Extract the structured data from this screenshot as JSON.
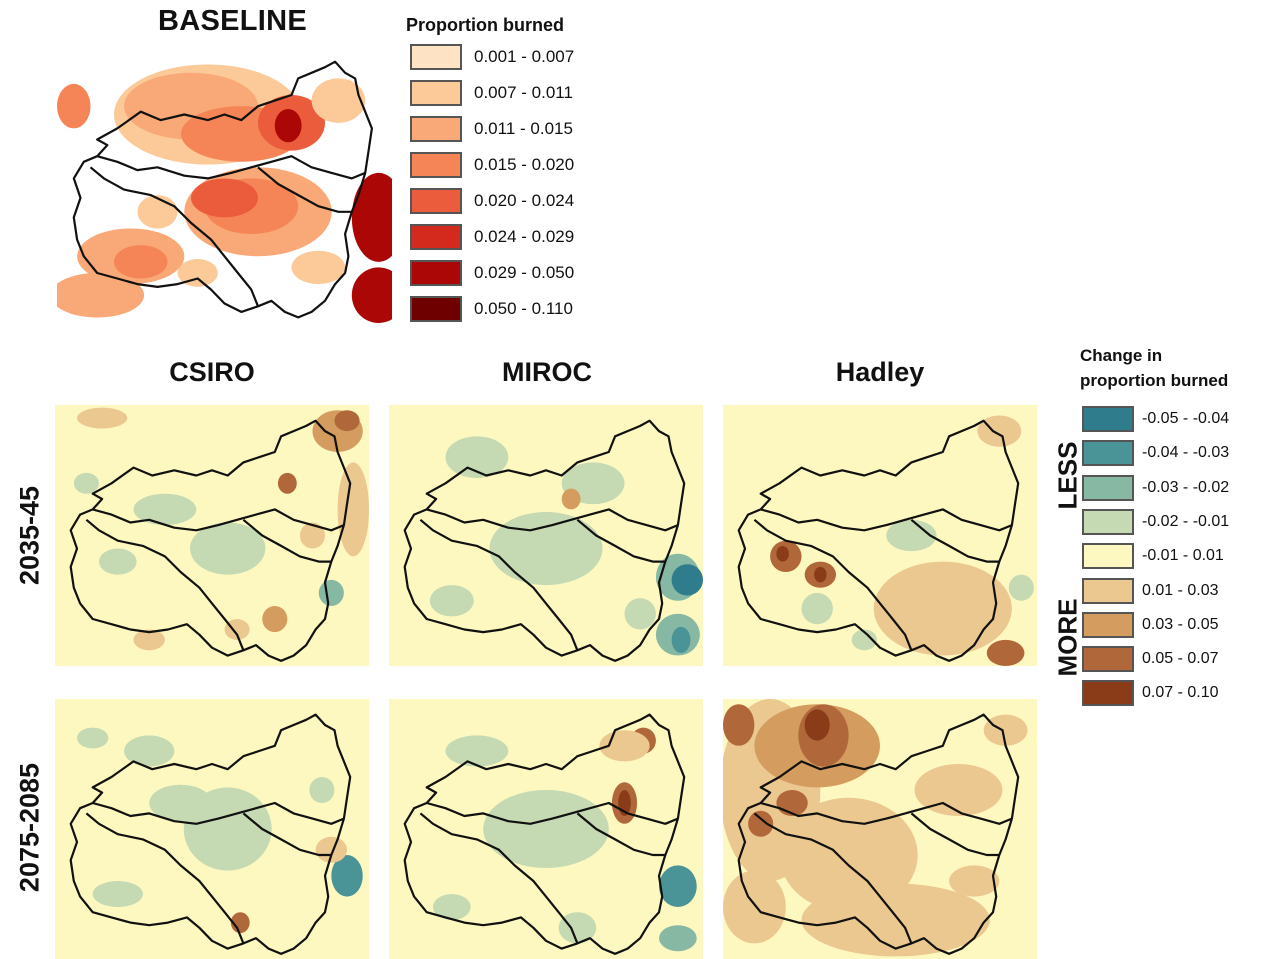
{
  "baseline": {
    "title": "BASELINE",
    "legend_title": "Proportion burned",
    "classes": [
      {
        "label": "0.001 - 0.007",
        "color": "#fde2c4"
      },
      {
        "label": "0.007 - 0.011",
        "color": "#fcc998"
      },
      {
        "label": "0.011 - 0.015",
        "color": "#f9a877"
      },
      {
        "label": "0.015 - 0.020",
        "color": "#f58556"
      },
      {
        "label": "0.020 - 0.024",
        "color": "#ea5c3c"
      },
      {
        "label": "0.024 - 0.029",
        "color": "#d42a1e"
      },
      {
        "label": "0.029 - 0.050",
        "color": "#ac0707"
      },
      {
        "label": "0.050 - 0.110",
        "color": "#6f0000"
      }
    ]
  },
  "columns": [
    "CSIRO",
    "MIROC",
    "Hadley"
  ],
  "rows": [
    "2035-45",
    "2075-2085"
  ],
  "change_legend": {
    "title_line1": "Change in",
    "title_line2": "proportion burned",
    "less_label": "LESS",
    "more_label": "MORE",
    "classes": [
      {
        "label": "-0.05 - -0.04",
        "color": "#2e7c8c"
      },
      {
        "label": "-0.04 - -0.03",
        "color": "#4a9396"
      },
      {
        "label": "-0.03 - -0.02",
        "color": "#86b8a4"
      },
      {
        "label": "-0.02 - -0.01",
        "color": "#c5d9b3"
      },
      {
        "label": "-0.01 - 0.01",
        "color": "#fdf8c0"
      },
      {
        "label": "0.01 - 0.03",
        "color": "#ebc890"
      },
      {
        "label": "0.03 - 0.05",
        "color": "#d49c5e"
      },
      {
        "label": "0.05 - 0.07",
        "color": "#b0683a"
      },
      {
        "label": "0.07 - 0.10",
        "color": "#8a3c18"
      }
    ]
  },
  "colors": {
    "boundary": "#111111",
    "background_change": "#fdf8c0",
    "background_baseline": "#ffffff"
  }
}
